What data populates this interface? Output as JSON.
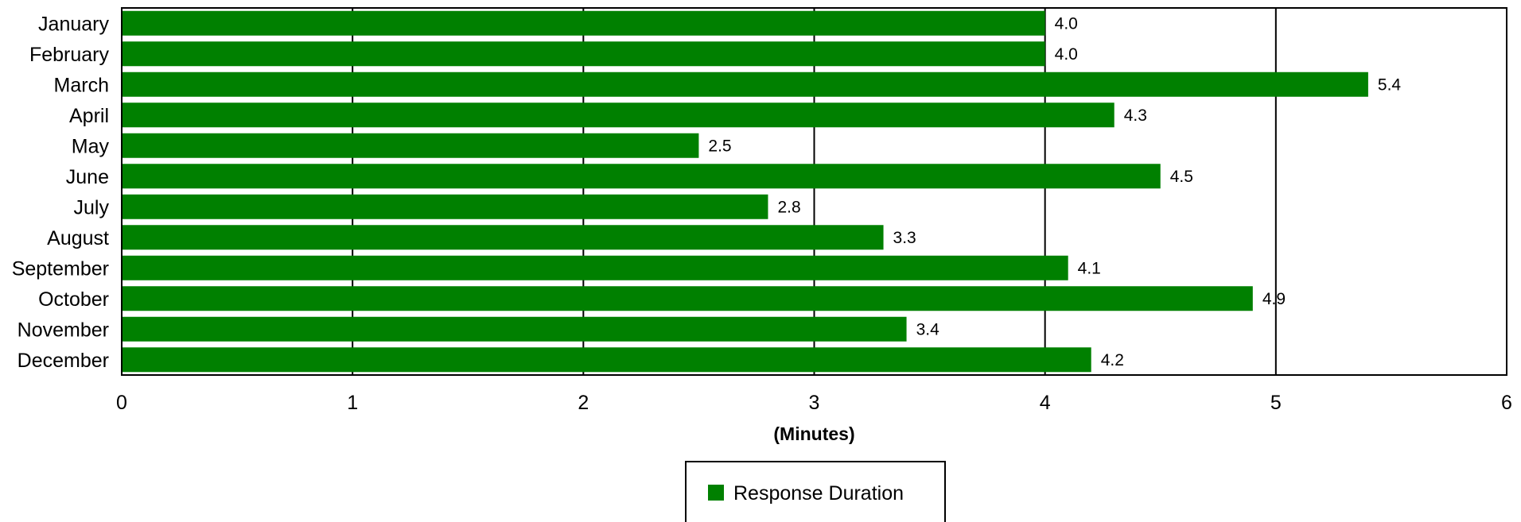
{
  "chart_data": {
    "type": "bar",
    "orientation": "horizontal",
    "categories": [
      "January",
      "February",
      "March",
      "April",
      "May",
      "June",
      "July",
      "August",
      "September",
      "October",
      "November",
      "December"
    ],
    "series": [
      {
        "name": "Response Duration",
        "values": [
          4.0,
          4.0,
          5.4,
          4.3,
          2.5,
          4.5,
          2.8,
          3.3,
          4.1,
          4.9,
          3.4,
          4.2
        ],
        "labels": [
          "4.0",
          "4.0",
          "5.4",
          "4.3",
          "2.5",
          "4.5",
          "2.8",
          "3.3",
          "4.1",
          "4.9",
          "3.4",
          "4.2"
        ]
      }
    ],
    "xlabel": "(Minutes)",
    "xlim": [
      0,
      6
    ],
    "xticks": [
      0,
      1,
      2,
      3,
      4,
      5,
      6
    ],
    "grid": true,
    "legend_position": "bottom-center",
    "colors": {
      "bar": "#008000",
      "grid": "#000000",
      "border": "#000000",
      "background": "#ffffff"
    }
  }
}
